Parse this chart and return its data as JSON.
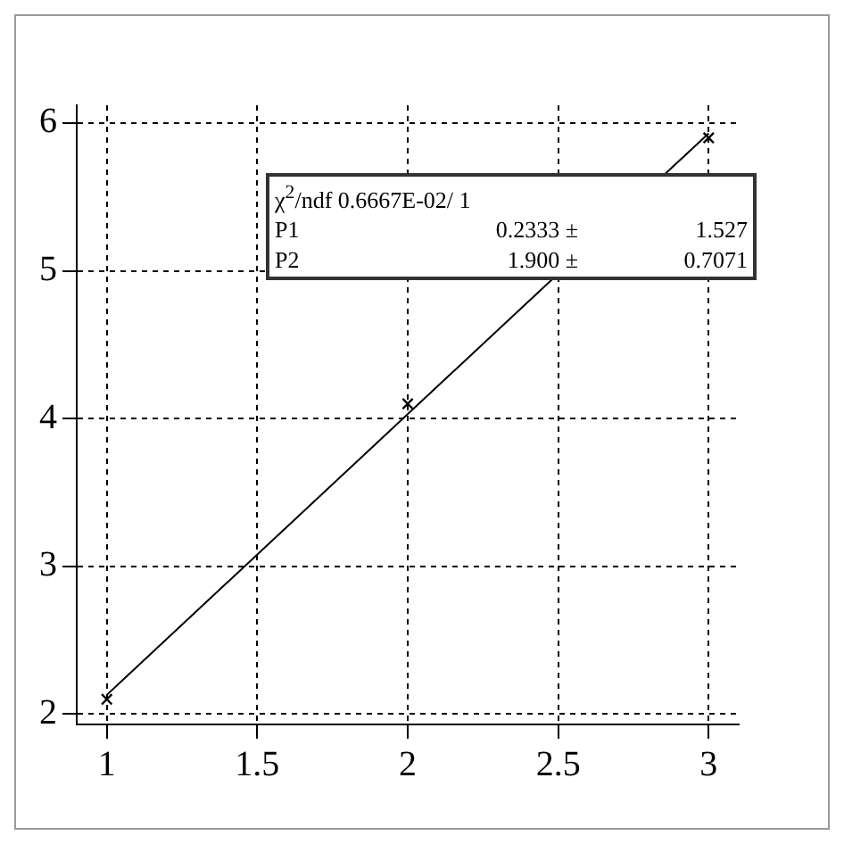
{
  "chart_data": {
    "type": "scatter",
    "xlim": [
      0.9,
      3.1
    ],
    "xticks": [
      1,
      1.5,
      2,
      2.5,
      3
    ],
    "ylim": [
      1.93,
      6.12
    ],
    "yticks": [
      2,
      3,
      4,
      5,
      6
    ],
    "grid": true,
    "legend": false,
    "marker": "cross",
    "series": [
      {
        "color": "#000000",
        "x": [
          1,
          2,
          3
        ],
        "values": [
          2.1,
          4.1,
          5.9
        ]
      },
      {
        "type": "line",
        "color": "#000000",
        "marker": "none",
        "line_style": "solid",
        "x": [
          1,
          3
        ],
        "values": [
          2.13,
          5.93
        ]
      }
    ],
    "annotations": [
      "χ$^{2}$/ndf  0.6667E-02/    1",
      "P1",
      "0.2333 ±",
      "1.527",
      "P2",
      "1.900 ±",
      "0.7071"
    ]
  }
}
